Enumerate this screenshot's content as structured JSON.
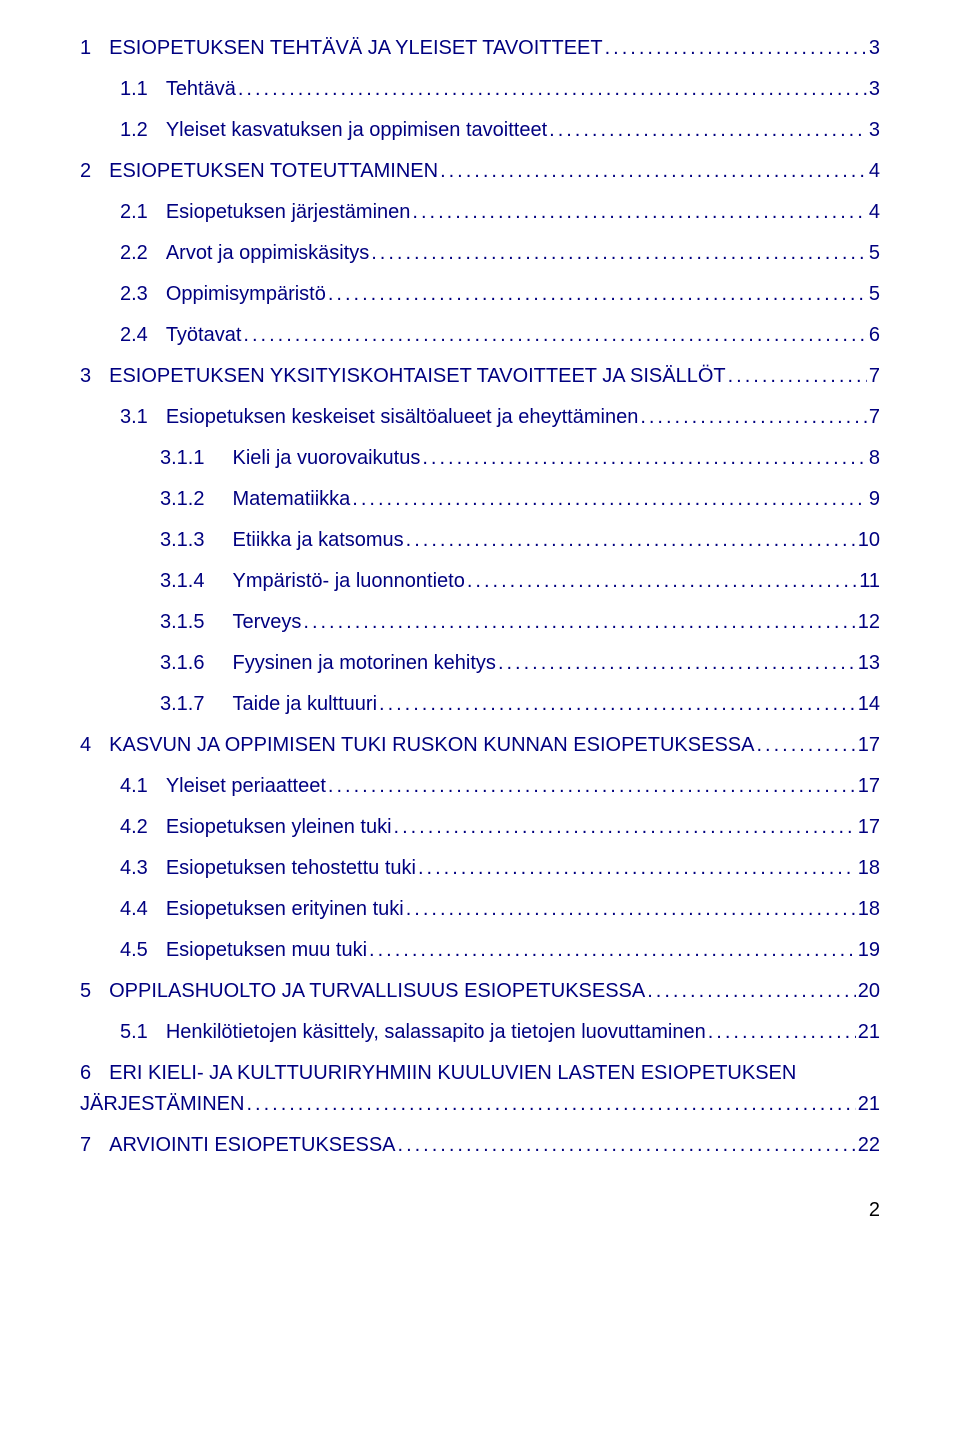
{
  "pageNumber": "2",
  "entries": [
    {
      "level": 1,
      "num": "1",
      "title": "ESIOPETUKSEN TEHTÄVÄ JA YLEISET TAVOITTEET",
      "page": "3",
      "upper": true
    },
    {
      "level": 2,
      "num": "1.1",
      "title": "Tehtävä",
      "page": "3"
    },
    {
      "level": 2,
      "num": "1.2",
      "title": "Yleiset kasvatuksen ja oppimisen tavoitteet",
      "page": "3"
    },
    {
      "level": 1,
      "num": "2",
      "title": "ESIOPETUKSEN TOTEUTTAMINEN",
      "page": "4",
      "upper": true
    },
    {
      "level": 2,
      "num": "2.1",
      "title": "Esiopetuksen järjestäminen",
      "page": "4"
    },
    {
      "level": 2,
      "num": "2.2",
      "title": "Arvot ja oppimiskäsitys",
      "page": "5"
    },
    {
      "level": 2,
      "num": "2.3",
      "title": "Oppimisympäristö",
      "page": "5"
    },
    {
      "level": 2,
      "num": "2.4",
      "title": "Työtavat",
      "page": "6"
    },
    {
      "level": 1,
      "num": "3",
      "title": "ESIOPETUKSEN YKSITYISKOHTAISET TAVOITTEET JA SISÄLLÖT",
      "page": "7",
      "upper": true
    },
    {
      "level": 2,
      "num": "3.1",
      "title": "Esiopetuksen keskeiset sisältöalueet ja eheyttäminen",
      "page": "7"
    },
    {
      "level": 3,
      "num": "3.1.1",
      "title": "Kieli ja vuorovaikutus",
      "page": "8"
    },
    {
      "level": 3,
      "num": "3.1.2",
      "title": "Matematiikka",
      "page": "9"
    },
    {
      "level": 3,
      "num": "3.1.3",
      "title": "Etiikka ja katsomus",
      "page": "10"
    },
    {
      "level": 3,
      "num": "3.1.4",
      "title": "Ympäristö- ja luonnontieto",
      "page": "11"
    },
    {
      "level": 3,
      "num": "3.1.5",
      "title": "Terveys",
      "page": "12"
    },
    {
      "level": 3,
      "num": "3.1.6",
      "title": "Fyysinen ja motorinen kehitys",
      "page": "13"
    },
    {
      "level": 3,
      "num": "3.1.7",
      "title": "Taide ja kulttuuri",
      "page": "14"
    },
    {
      "level": 1,
      "num": "4",
      "title": "KASVUN JA OPPIMISEN TUKI RUSKON KUNNAN ESIOPETUKSESSA",
      "page": "17",
      "upper": true
    },
    {
      "level": 2,
      "num": "4.1",
      "title": "Yleiset periaatteet",
      "page": "17"
    },
    {
      "level": 2,
      "num": "4.2",
      "title": "Esiopetuksen yleinen tuki",
      "page": "17"
    },
    {
      "level": 2,
      "num": "4.3",
      "title": "Esiopetuksen tehostettu tuki",
      "page": "18"
    },
    {
      "level": 2,
      "num": "4.4",
      "title": "Esiopetuksen erityinen tuki",
      "page": "18"
    },
    {
      "level": 2,
      "num": "4.5",
      "title": "Esiopetuksen muu tuki",
      "page": "19"
    },
    {
      "level": 1,
      "num": "5",
      "title": "OPPILASHUOLTO JA TURVALLISUUS ESIOPETUKSESSA",
      "page": "20",
      "upper": true
    },
    {
      "level": 2,
      "num": "5.1",
      "title": "Henkilötietojen käsittely, salassapito ja tietojen luovuttaminen",
      "page": "21"
    },
    {
      "level": 1,
      "num": "6",
      "title": "ERI KIELI- JA KULTTUURIRYHMIIN KUULUVIEN LASTEN ESIOPETUKSEN JÄRJESTÄMINEN",
      "page": "21",
      "upper": true,
      "wrap": true
    },
    {
      "level": 1,
      "num": "7",
      "title": "ARVIOINTI ESIOPETUKSESSA",
      "page": "22",
      "upper": true
    }
  ]
}
